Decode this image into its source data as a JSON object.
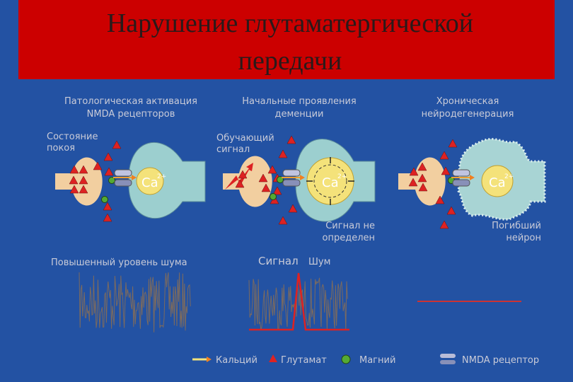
{
  "title": [
    "Нарушение глутаматергической",
    "передачи"
  ],
  "ion": {
    "symbol": "Ca",
    "charge": "2+"
  },
  "panels": [
    {
      "heading": [
        "Патологическая активация",
        "NMDA рецепторов"
      ],
      "input_label": [
        "Состояние",
        "покоя"
      ],
      "noise_label": "Повышенный уровень шума"
    },
    {
      "heading": [
        "Начальные проявления",
        "деменции"
      ],
      "input_label": [
        "Обучающий",
        "сигнал"
      ],
      "result_label": [
        "Сигнал не",
        "определен"
      ],
      "signal_label": "Сигнал",
      "noise_label": "Шум"
    },
    {
      "heading": [
        "Хроническая",
        "нейродегенерация"
      ],
      "result_label": [
        "Погибший",
        "нейрон"
      ]
    }
  ],
  "legend": [
    "Кальций",
    "Глутамат",
    "Магний",
    "NMDA рецептор"
  ]
}
